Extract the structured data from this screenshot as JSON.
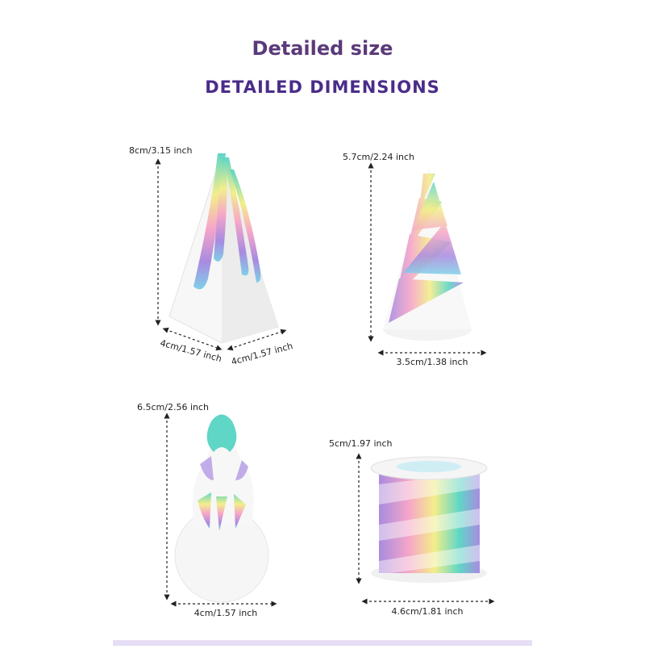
{
  "header": {
    "title": "Detailed size",
    "subtitle": "DETAILED DIMENSIONS"
  },
  "items": [
    {
      "height": "8cm/3.15 inch",
      "widths": [
        "4cm/1.57 inch",
        "4cm/1.57 inch"
      ]
    },
    {
      "height": "5.7cm/2.24 inch",
      "widths": [
        "3.5cm/1.38 inch"
      ]
    },
    {
      "height": "6.5cm/2.56 inch",
      "widths": [
        "4cm/1.57 inch"
      ]
    },
    {
      "height": "5cm/1.97 inch",
      "widths": [
        "4.6cm/1.81 inch"
      ]
    }
  ]
}
